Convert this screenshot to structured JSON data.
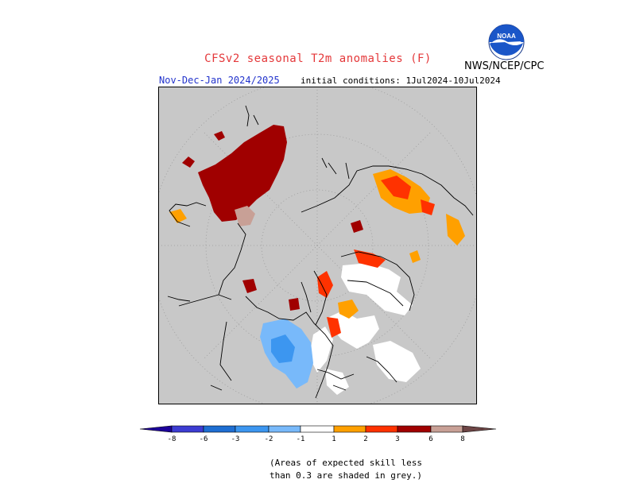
{
  "header": {
    "title": "CFSv2 seasonal T2m anomalies (F)",
    "season": "Nov-Dec-Jan 2024/2025",
    "initial_conditions": "initial conditions: 1Jul2024-10Jul2024",
    "agency": "NWS/NCEP/CPC",
    "logo_text": "NOAA"
  },
  "map": {
    "projection": "north polar stereographic",
    "skill_mask_color": "#c8c8c8"
  },
  "legend": {
    "ticks": [
      "-8",
      "-6",
      "-3",
      "-2",
      "-1",
      "1",
      "2",
      "3",
      "6",
      "8"
    ],
    "colors": {
      "lt_minus8": "#1c009a",
      "m8_m6": "#3c3cd2",
      "m6_m3": "#1e6ed2",
      "m3_m2": "#3c96f0",
      "m2_m1": "#78b9fa",
      "m1_1": "#ffffff",
      "p1_p2": "#ffa000",
      "p2_p3": "#ff3200",
      "p3_p6": "#a00000",
      "p6_p8": "#c8a096",
      "gt_8": "#6e4646"
    }
  },
  "note": {
    "line1": "(Areas of expected skill less",
    "line2": "than 0.3 are shaded in grey.)"
  }
}
